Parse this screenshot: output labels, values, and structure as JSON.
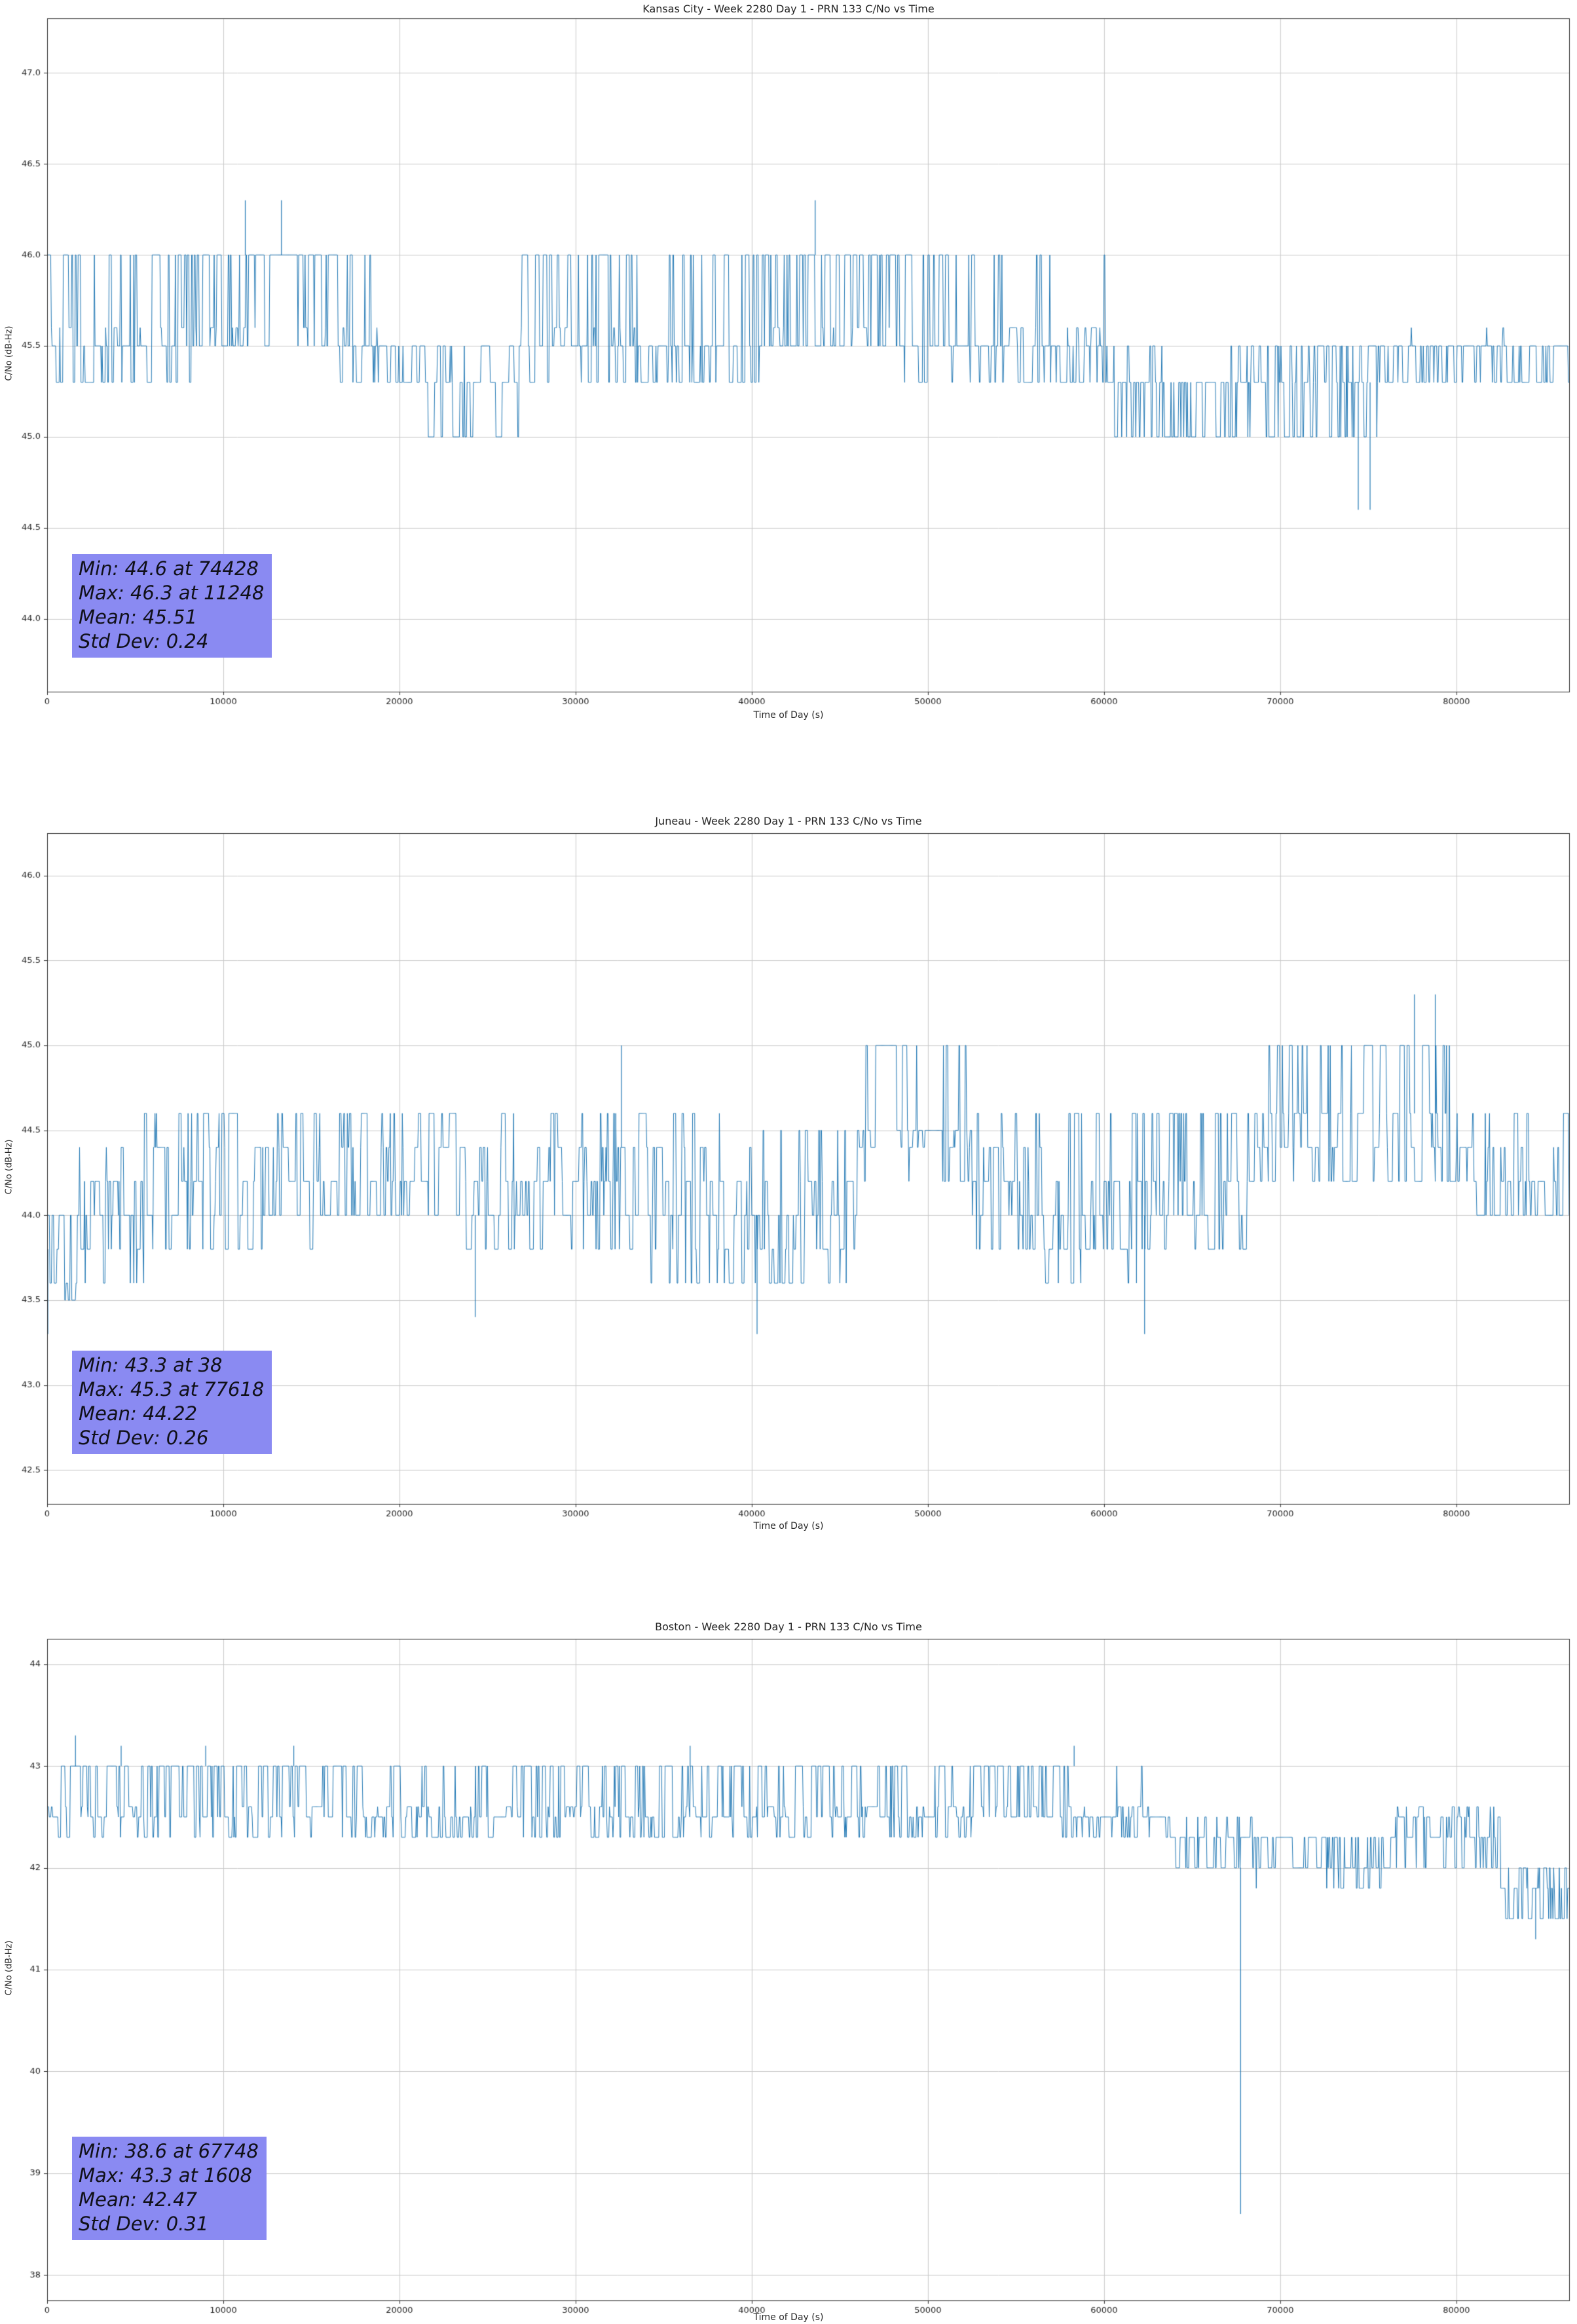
{
  "colors": {
    "line": "#1f77b4",
    "stats_box_bg": "#8a8af2",
    "grid": "#c9c9c9",
    "text": "#262626"
  },
  "chart_data": [
    {
      "type": "line",
      "title": "Kansas City - Week 2280 Day 1 - PRN 133 C/No vs Time",
      "xlabel": "Time of Day (s)",
      "ylabel": "C/No (dB-Hz)",
      "legend": "none",
      "grid": true,
      "xlim": [
        0,
        86400
      ],
      "ylim": [
        43.6,
        47.3
      ],
      "xticks": [
        0,
        10000,
        20000,
        30000,
        40000,
        50000,
        60000,
        70000,
        80000
      ],
      "xtick_labels": [
        "0",
        "10000",
        "20000",
        "30000",
        "40000",
        "50000",
        "60000",
        "70000",
        "80000"
      ],
      "yticks": [
        44.0,
        44.5,
        45.0,
        45.5,
        46.0,
        46.5,
        47.0
      ],
      "ytick_labels": [
        "44.0",
        "44.5",
        "45.0",
        "45.5",
        "46.0",
        "46.5",
        "47.0"
      ],
      "stats_lines": [
        "Min: 44.6 at 74428",
        "Max: 46.3 at 11248",
        "Mean: 45.51",
        "Std Dev: 0.24"
      ],
      "series": {
        "name": "PRN 133 C/No",
        "sampling_step_s": 40,
        "segments": [
          {
            "x0": 0,
            "x1": 800,
            "levels": [
              45.3,
              45.5,
              45.6,
              46.0
            ],
            "weights": [
              0.2,
              0.3,
              0.2,
              0.3
            ]
          },
          {
            "x0": 800,
            "x1": 8200,
            "levels": [
              45.3,
              45.5,
              45.6,
              46.0
            ],
            "weights": [
              0.25,
              0.35,
              0.15,
              0.25
            ]
          },
          {
            "x0": 8200,
            "x1": 16500,
            "levels": [
              45.5,
              45.6,
              46.0
            ],
            "weights": [
              0.25,
              0.15,
              0.6
            ]
          },
          {
            "x0": 16500,
            "x1": 18800,
            "levels": [
              45.3,
              45.5,
              45.6,
              46.0
            ],
            "weights": [
              0.3,
              0.4,
              0.1,
              0.2
            ]
          },
          {
            "x0": 18800,
            "x1": 21500,
            "levels": [
              45.3,
              45.5
            ],
            "weights": [
              0.45,
              0.55
            ]
          },
          {
            "x0": 21500,
            "x1": 26800,
            "levels": [
              45.0,
              45.3,
              45.5
            ],
            "weights": [
              0.3,
              0.55,
              0.15
            ]
          },
          {
            "x0": 26800,
            "x1": 33500,
            "levels": [
              45.3,
              45.5,
              45.6,
              46.0
            ],
            "weights": [
              0.25,
              0.3,
              0.1,
              0.35
            ]
          },
          {
            "x0": 33500,
            "x1": 40500,
            "levels": [
              45.3,
              45.5,
              46.0
            ],
            "weights": [
              0.35,
              0.4,
              0.25
            ]
          },
          {
            "x0": 40500,
            "x1": 48500,
            "levels": [
              45.5,
              45.6,
              46.0
            ],
            "weights": [
              0.35,
              0.1,
              0.55
            ]
          },
          {
            "x0": 48500,
            "x1": 54500,
            "levels": [
              45.3,
              45.5,
              46.0
            ],
            "weights": [
              0.2,
              0.5,
              0.3
            ]
          },
          {
            "x0": 54500,
            "x1": 60500,
            "levels": [
              45.3,
              45.5,
              45.6,
              46.0
            ],
            "weights": [
              0.35,
              0.45,
              0.1,
              0.1
            ]
          },
          {
            "x0": 60500,
            "x1": 67500,
            "levels": [
              45.0,
              45.3,
              45.5
            ],
            "weights": [
              0.45,
              0.45,
              0.1
            ]
          },
          {
            "x0": 67500,
            "x1": 75500,
            "levels": [
              45.0,
              45.3,
              45.5
            ],
            "weights": [
              0.25,
              0.4,
              0.35
            ]
          },
          {
            "x0": 75500,
            "x1": 86400,
            "levels": [
              45.3,
              45.5,
              45.6
            ],
            "weights": [
              0.45,
              0.5,
              0.05
            ]
          }
        ],
        "spikes": [
          {
            "x": 11248,
            "y": 46.3,
            "from": 46.0
          },
          {
            "x": 13300,
            "y": 46.3,
            "from": 46.0
          },
          {
            "x": 43600,
            "y": 46.3,
            "from": 46.0
          },
          {
            "x": 74428,
            "y": 44.6,
            "from": 45.3
          },
          {
            "x": 75100,
            "y": 44.6,
            "from": 45.3
          }
        ]
      }
    },
    {
      "type": "line",
      "title": "Juneau - Week 2280 Day 1 - PRN 133 C/No vs Time",
      "xlabel": "Time of Day (s)",
      "ylabel": "C/No (dB-Hz)",
      "legend": "none",
      "grid": true,
      "xlim": [
        0,
        86400
      ],
      "ylim": [
        42.3,
        46.25
      ],
      "xticks": [
        0,
        10000,
        20000,
        30000,
        40000,
        50000,
        60000,
        70000,
        80000
      ],
      "xtick_labels": [
        "0",
        "10000",
        "20000",
        "30000",
        "40000",
        "50000",
        "60000",
        "70000",
        "80000"
      ],
      "yticks": [
        42.5,
        43.0,
        43.5,
        44.0,
        44.5,
        45.0,
        45.5,
        46.0
      ],
      "ytick_labels": [
        "42.5",
        "43.0",
        "43.5",
        "44.0",
        "44.5",
        "45.0",
        "45.5",
        "46.0"
      ],
      "stats_lines": [
        "Min: 43.3 at 38",
        "Max: 45.3 at 77618",
        "Mean: 44.22",
        "Std Dev: 0.26"
      ],
      "series": {
        "name": "PRN 133 C/No",
        "sampling_step_s": 40,
        "segments": [
          {
            "x0": 0,
            "x1": 1800,
            "levels": [
              43.5,
              43.6,
              43.8,
              44.0,
              44.2
            ],
            "weights": [
              0.25,
              0.2,
              0.25,
              0.2,
              0.1
            ]
          },
          {
            "x0": 1800,
            "x1": 5500,
            "levels": [
              43.6,
              43.8,
              44.0,
              44.2,
              44.4
            ],
            "weights": [
              0.2,
              0.2,
              0.25,
              0.25,
              0.1
            ]
          },
          {
            "x0": 5500,
            "x1": 15500,
            "levels": [
              43.8,
              44.0,
              44.2,
              44.4,
              44.6
            ],
            "weights": [
              0.15,
              0.2,
              0.25,
              0.15,
              0.25
            ]
          },
          {
            "x0": 15500,
            "x1": 23500,
            "levels": [
              44.0,
              44.2,
              44.4,
              44.6
            ],
            "weights": [
              0.25,
              0.3,
              0.2,
              0.25
            ]
          },
          {
            "x0": 23500,
            "x1": 32500,
            "levels": [
              43.8,
              44.0,
              44.2,
              44.4,
              44.6
            ],
            "weights": [
              0.2,
              0.25,
              0.25,
              0.15,
              0.15
            ]
          },
          {
            "x0": 32500,
            "x1": 40000,
            "levels": [
              43.6,
              43.8,
              44.0,
              44.2,
              44.4,
              44.6
            ],
            "weights": [
              0.15,
              0.15,
              0.25,
              0.2,
              0.15,
              0.1
            ]
          },
          {
            "x0": 40000,
            "x1": 46000,
            "levels": [
              43.6,
              43.8,
              44.0,
              44.2,
              44.5
            ],
            "weights": [
              0.15,
              0.2,
              0.25,
              0.25,
              0.15
            ]
          },
          {
            "x0": 46000,
            "x1": 52500,
            "levels": [
              44.2,
              44.4,
              44.5,
              45.0
            ],
            "weights": [
              0.2,
              0.25,
              0.3,
              0.25
            ]
          },
          {
            "x0": 52500,
            "x1": 56500,
            "levels": [
              43.8,
              44.0,
              44.2,
              44.4,
              44.6
            ],
            "weights": [
              0.2,
              0.25,
              0.25,
              0.2,
              0.1
            ]
          },
          {
            "x0": 56500,
            "x1": 62500,
            "levels": [
              43.6,
              43.8,
              44.0,
              44.2,
              44.6
            ],
            "weights": [
              0.2,
              0.2,
              0.25,
              0.2,
              0.15
            ]
          },
          {
            "x0": 62500,
            "x1": 68500,
            "levels": [
              43.8,
              44.0,
              44.2,
              44.6
            ],
            "weights": [
              0.15,
              0.25,
              0.3,
              0.3
            ]
          },
          {
            "x0": 68500,
            "x1": 75500,
            "levels": [
              44.2,
              44.4,
              44.6,
              45.0
            ],
            "weights": [
              0.25,
              0.2,
              0.35,
              0.2
            ]
          },
          {
            "x0": 75500,
            "x1": 80500,
            "levels": [
              44.2,
              44.4,
              44.6,
              45.0
            ],
            "weights": [
              0.2,
              0.2,
              0.35,
              0.25
            ]
          },
          {
            "x0": 80500,
            "x1": 86400,
            "levels": [
              44.0,
              44.2,
              44.4,
              44.6
            ],
            "weights": [
              0.3,
              0.3,
              0.2,
              0.2
            ]
          }
        ],
        "spikes": [
          {
            "x": 38,
            "y": 43.3,
            "from": 43.8
          },
          {
            "x": 24300,
            "y": 43.4,
            "from": 44.0
          },
          {
            "x": 32600,
            "y": 45.0,
            "from": 44.4
          },
          {
            "x": 40300,
            "y": 43.3,
            "from": 44.0
          },
          {
            "x": 62300,
            "y": 43.3,
            "from": 44.0
          },
          {
            "x": 77618,
            "y": 45.3,
            "from": 44.6
          },
          {
            "x": 78800,
            "y": 45.3,
            "from": 44.6
          }
        ]
      }
    },
    {
      "type": "line",
      "title": "Boston - Week 2280 Day 1 - PRN 133 C/No vs Time",
      "xlabel": "Time of Day (s)",
      "ylabel": "C/No (dB-Hz)",
      "legend": "none",
      "grid": true,
      "xlim": [
        0,
        86400
      ],
      "ylim": [
        37.75,
        44.25
      ],
      "xticks": [
        0,
        10000,
        20000,
        30000,
        40000,
        50000,
        60000,
        70000,
        80000
      ],
      "xtick_labels": [
        "0",
        "10000",
        "20000",
        "30000",
        "40000",
        "50000",
        "60000",
        "70000",
        "80000"
      ],
      "yticks": [
        38,
        39,
        40,
        41,
        42,
        43,
        44
      ],
      "ytick_labels": [
        "38",
        "39",
        "40",
        "41",
        "42",
        "43",
        "44"
      ],
      "stats_lines": [
        "Min: 38.6 at 67748",
        "Max: 43.3 at 1608",
        "Mean: 42.47",
        "Std Dev: 0.31"
      ],
      "series": {
        "name": "PRN 133 C/No",
        "sampling_step_s": 40,
        "segments": [
          {
            "x0": 0,
            "x1": 17500,
            "levels": [
              42.3,
              42.5,
              42.6,
              43.0
            ],
            "weights": [
              0.2,
              0.3,
              0.1,
              0.4
            ]
          },
          {
            "x0": 17500,
            "x1": 30000,
            "levels": [
              42.3,
              42.5,
              42.6,
              43.0
            ],
            "weights": [
              0.3,
              0.35,
              0.15,
              0.2
            ]
          },
          {
            "x0": 30000,
            "x1": 42500,
            "levels": [
              42.3,
              42.5,
              42.6,
              43.0
            ],
            "weights": [
              0.25,
              0.3,
              0.15,
              0.3
            ]
          },
          {
            "x0": 42500,
            "x1": 52500,
            "levels": [
              42.3,
              42.5,
              42.6,
              43.0
            ],
            "weights": [
              0.3,
              0.35,
              0.15,
              0.2
            ]
          },
          {
            "x0": 52500,
            "x1": 57500,
            "levels": [
              42.5,
              42.6,
              43.0
            ],
            "weights": [
              0.25,
              0.15,
              0.6
            ]
          },
          {
            "x0": 57500,
            "x1": 63500,
            "levels": [
              42.3,
              42.5,
              42.6,
              43.0
            ],
            "weights": [
              0.35,
              0.4,
              0.15,
              0.1
            ]
          },
          {
            "x0": 63500,
            "x1": 68500,
            "levels": [
              42.0,
              42.3,
              42.5
            ],
            "weights": [
              0.3,
              0.4,
              0.3
            ]
          },
          {
            "x0": 68500,
            "x1": 76500,
            "levels": [
              41.8,
              42.0,
              42.3
            ],
            "weights": [
              0.25,
              0.35,
              0.4
            ]
          },
          {
            "x0": 76500,
            "x1": 82500,
            "levels": [
              42.0,
              42.3,
              42.5,
              42.6
            ],
            "weights": [
              0.3,
              0.35,
              0.25,
              0.1
            ]
          },
          {
            "x0": 82500,
            "x1": 86400,
            "levels": [
              41.5,
              41.8,
              42.0
            ],
            "weights": [
              0.3,
              0.35,
              0.35
            ]
          }
        ],
        "spikes": [
          {
            "x": 1608,
            "y": 43.3,
            "from": 43.0
          },
          {
            "x": 4200,
            "y": 43.2,
            "from": 43.0
          },
          {
            "x": 9000,
            "y": 43.2,
            "from": 43.0
          },
          {
            "x": 14000,
            "y": 43.2,
            "from": 43.0
          },
          {
            "x": 36500,
            "y": 43.2,
            "from": 43.0
          },
          {
            "x": 58300,
            "y": 43.2,
            "from": 43.0
          },
          {
            "x": 67748,
            "y": 38.6,
            "from": 42.0
          },
          {
            "x": 84500,
            "y": 41.3,
            "from": 41.8
          }
        ]
      }
    }
  ]
}
